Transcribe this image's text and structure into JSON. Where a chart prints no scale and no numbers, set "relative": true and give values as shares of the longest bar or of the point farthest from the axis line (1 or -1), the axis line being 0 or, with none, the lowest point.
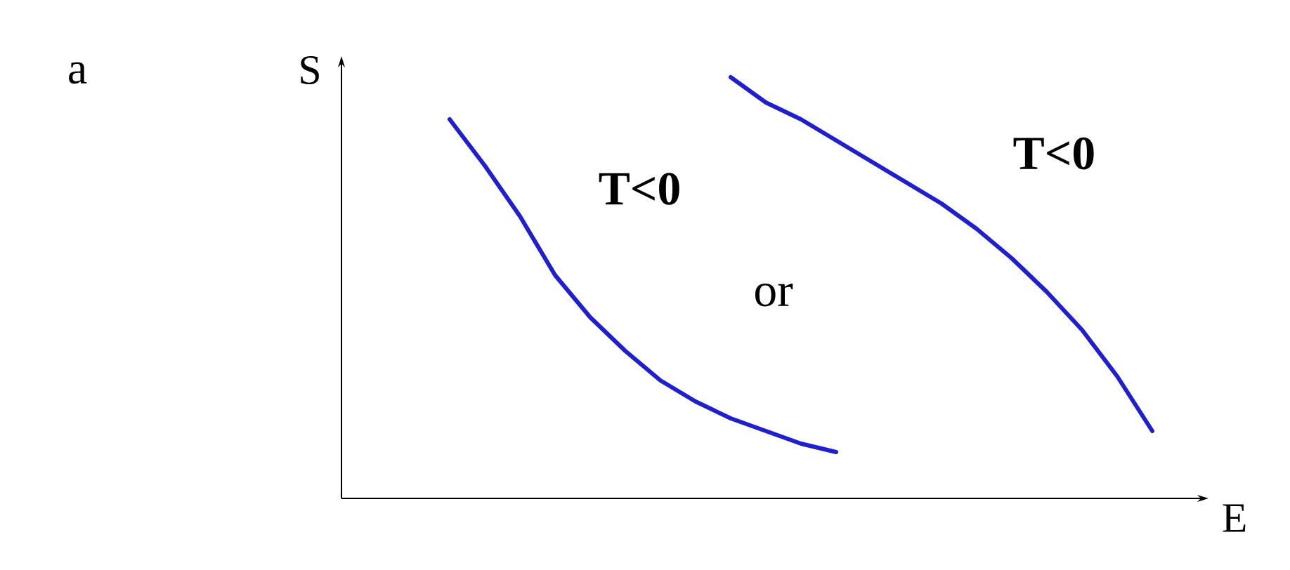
{
  "chart_data": {
    "type": "line",
    "relative": true,
    "xlabel": "E",
    "ylabel": "S",
    "annotations": [
      "a",
      "T<0",
      "or",
      "T<0"
    ],
    "categories": [
      null,
      null,
      null,
      null,
      null,
      null,
      null,
      null,
      null,
      null,
      null,
      null,
      null,
      null,
      null,
      null,
      null,
      null,
      null,
      null,
      null
    ],
    "series": [
      {
        "color": "#1f1fcf",
        "values": [
          0.9,
          0.79,
          0.67,
          0.53,
          0.43,
          0.35,
          0.28,
          0.23,
          0.19,
          0.16,
          0.13,
          0.11,
          null,
          null,
          null,
          null,
          null,
          null,
          null,
          null,
          null
        ]
      },
      {
        "color": "#1f1fcf",
        "values": [
          null,
          null,
          null,
          null,
          null,
          null,
          null,
          null,
          1.0,
          0.94,
          0.9,
          0.85,
          0.8,
          0.75,
          0.7,
          0.64,
          0.57,
          0.49,
          0.4,
          0.29,
          0.16
        ]
      }
    ]
  }
}
